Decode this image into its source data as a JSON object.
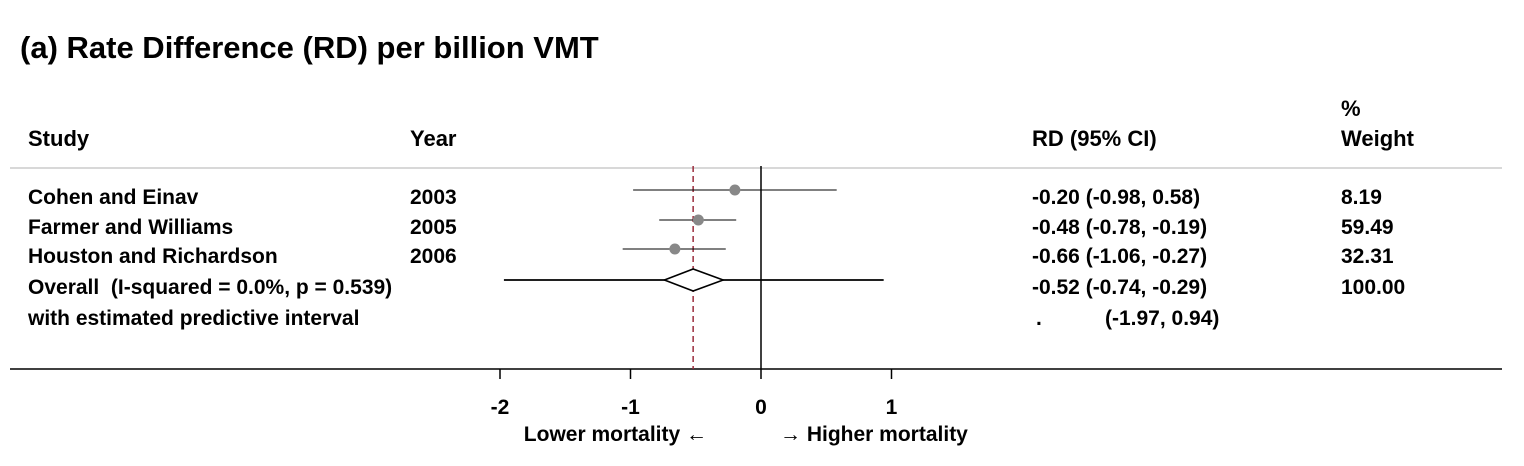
{
  "title": "(a) Rate Difference (RD) per billion VMT",
  "headers": {
    "study": "Study",
    "year": "Year",
    "rd": "RD (95% CI)",
    "weight_top": "%",
    "weight_bottom": "Weight"
  },
  "rows": [
    {
      "study": "Cohen and Einav",
      "year": "2003",
      "ci_text": "-0.20 (-0.98, 0.58)",
      "weight": "8.19"
    },
    {
      "study": "Farmer and Williams",
      "year": "2005",
      "ci_text": "-0.48 (-0.78, -0.19)",
      "weight": "59.49"
    },
    {
      "study": "Houston and Richardson",
      "year": "2006",
      "ci_text": "-0.66 (-1.06, -0.27)",
      "weight": "32.31"
    },
    {
      "study": "Overall  (I-squared = 0.0%, p = 0.539)",
      "year": "",
      "ci_text": "-0.52 (-0.74, -0.29)",
      "weight": "100.00"
    }
  ],
  "predictive": {
    "label": "with estimated predictive interval",
    "dot": ".",
    "ci_text": "(-1.97, 0.94)"
  },
  "x_axis": {
    "ticks": [
      "-2",
      "-1",
      "0",
      "1"
    ],
    "left_label": "Lower mortality ←",
    "right_label": "→ Higher mortality"
  },
  "chart_data": {
    "type": "forest",
    "title": "(a) Rate Difference (RD) per billion VMT",
    "xlabel": "",
    "x_ticks": [
      -2,
      -1,
      0,
      1
    ],
    "null_line": 0,
    "overall_line": -0.52,
    "studies": [
      {
        "name": "Cohen and Einav",
        "year": 2003,
        "estimate": -0.2,
        "lower": -0.98,
        "upper": 0.58,
        "weight": 8.19
      },
      {
        "name": "Farmer and Williams",
        "year": 2005,
        "estimate": -0.48,
        "lower": -0.78,
        "upper": -0.19,
        "weight": 59.49
      },
      {
        "name": "Houston and Richardson",
        "year": 2006,
        "estimate": -0.66,
        "lower": -1.06,
        "upper": -0.27,
        "weight": 32.31
      }
    ],
    "overall": {
      "estimate": -0.52,
      "lower": -0.74,
      "upper": -0.29,
      "weight": 100.0
    },
    "predictive_interval": {
      "lower": -1.97,
      "upper": 0.94
    },
    "colors": {
      "point": "#888888",
      "overall_line": "#9b2c3c"
    }
  }
}
